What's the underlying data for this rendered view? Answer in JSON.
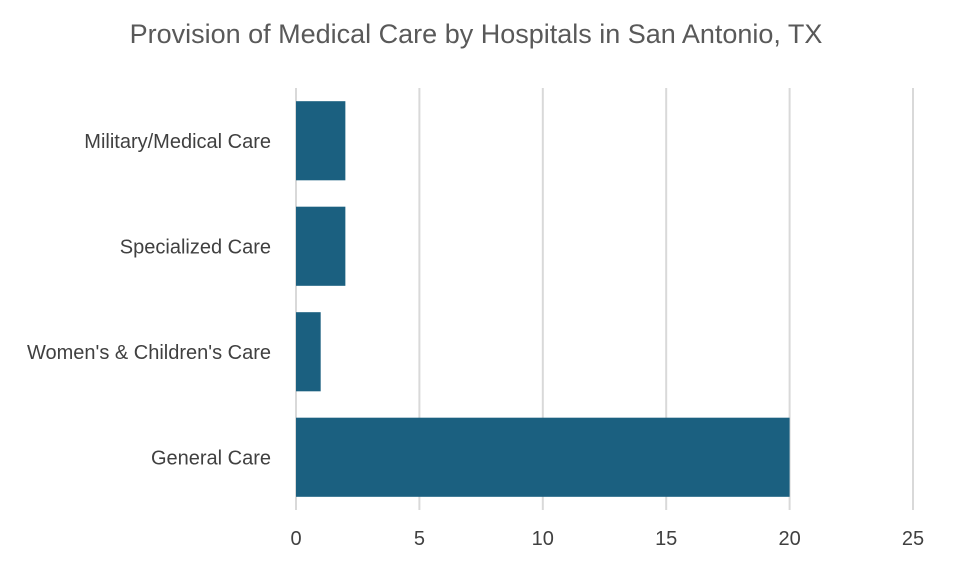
{
  "chart_data": {
    "type": "bar",
    "orientation": "horizontal",
    "title": "Provision of Medical Care by Hospitals in San Antonio, TX",
    "categories": [
      "Military/Medical Care",
      "Specialized Care",
      "Women's & Children's Care",
      "General Care"
    ],
    "values": [
      2,
      2,
      1,
      20
    ],
    "xlim": [
      0,
      25
    ],
    "xticks": [
      0,
      5,
      10,
      15,
      20,
      25
    ],
    "xlabel": "",
    "ylabel": "",
    "grid": true,
    "legend": "none",
    "bar_color": "#1b6080"
  }
}
